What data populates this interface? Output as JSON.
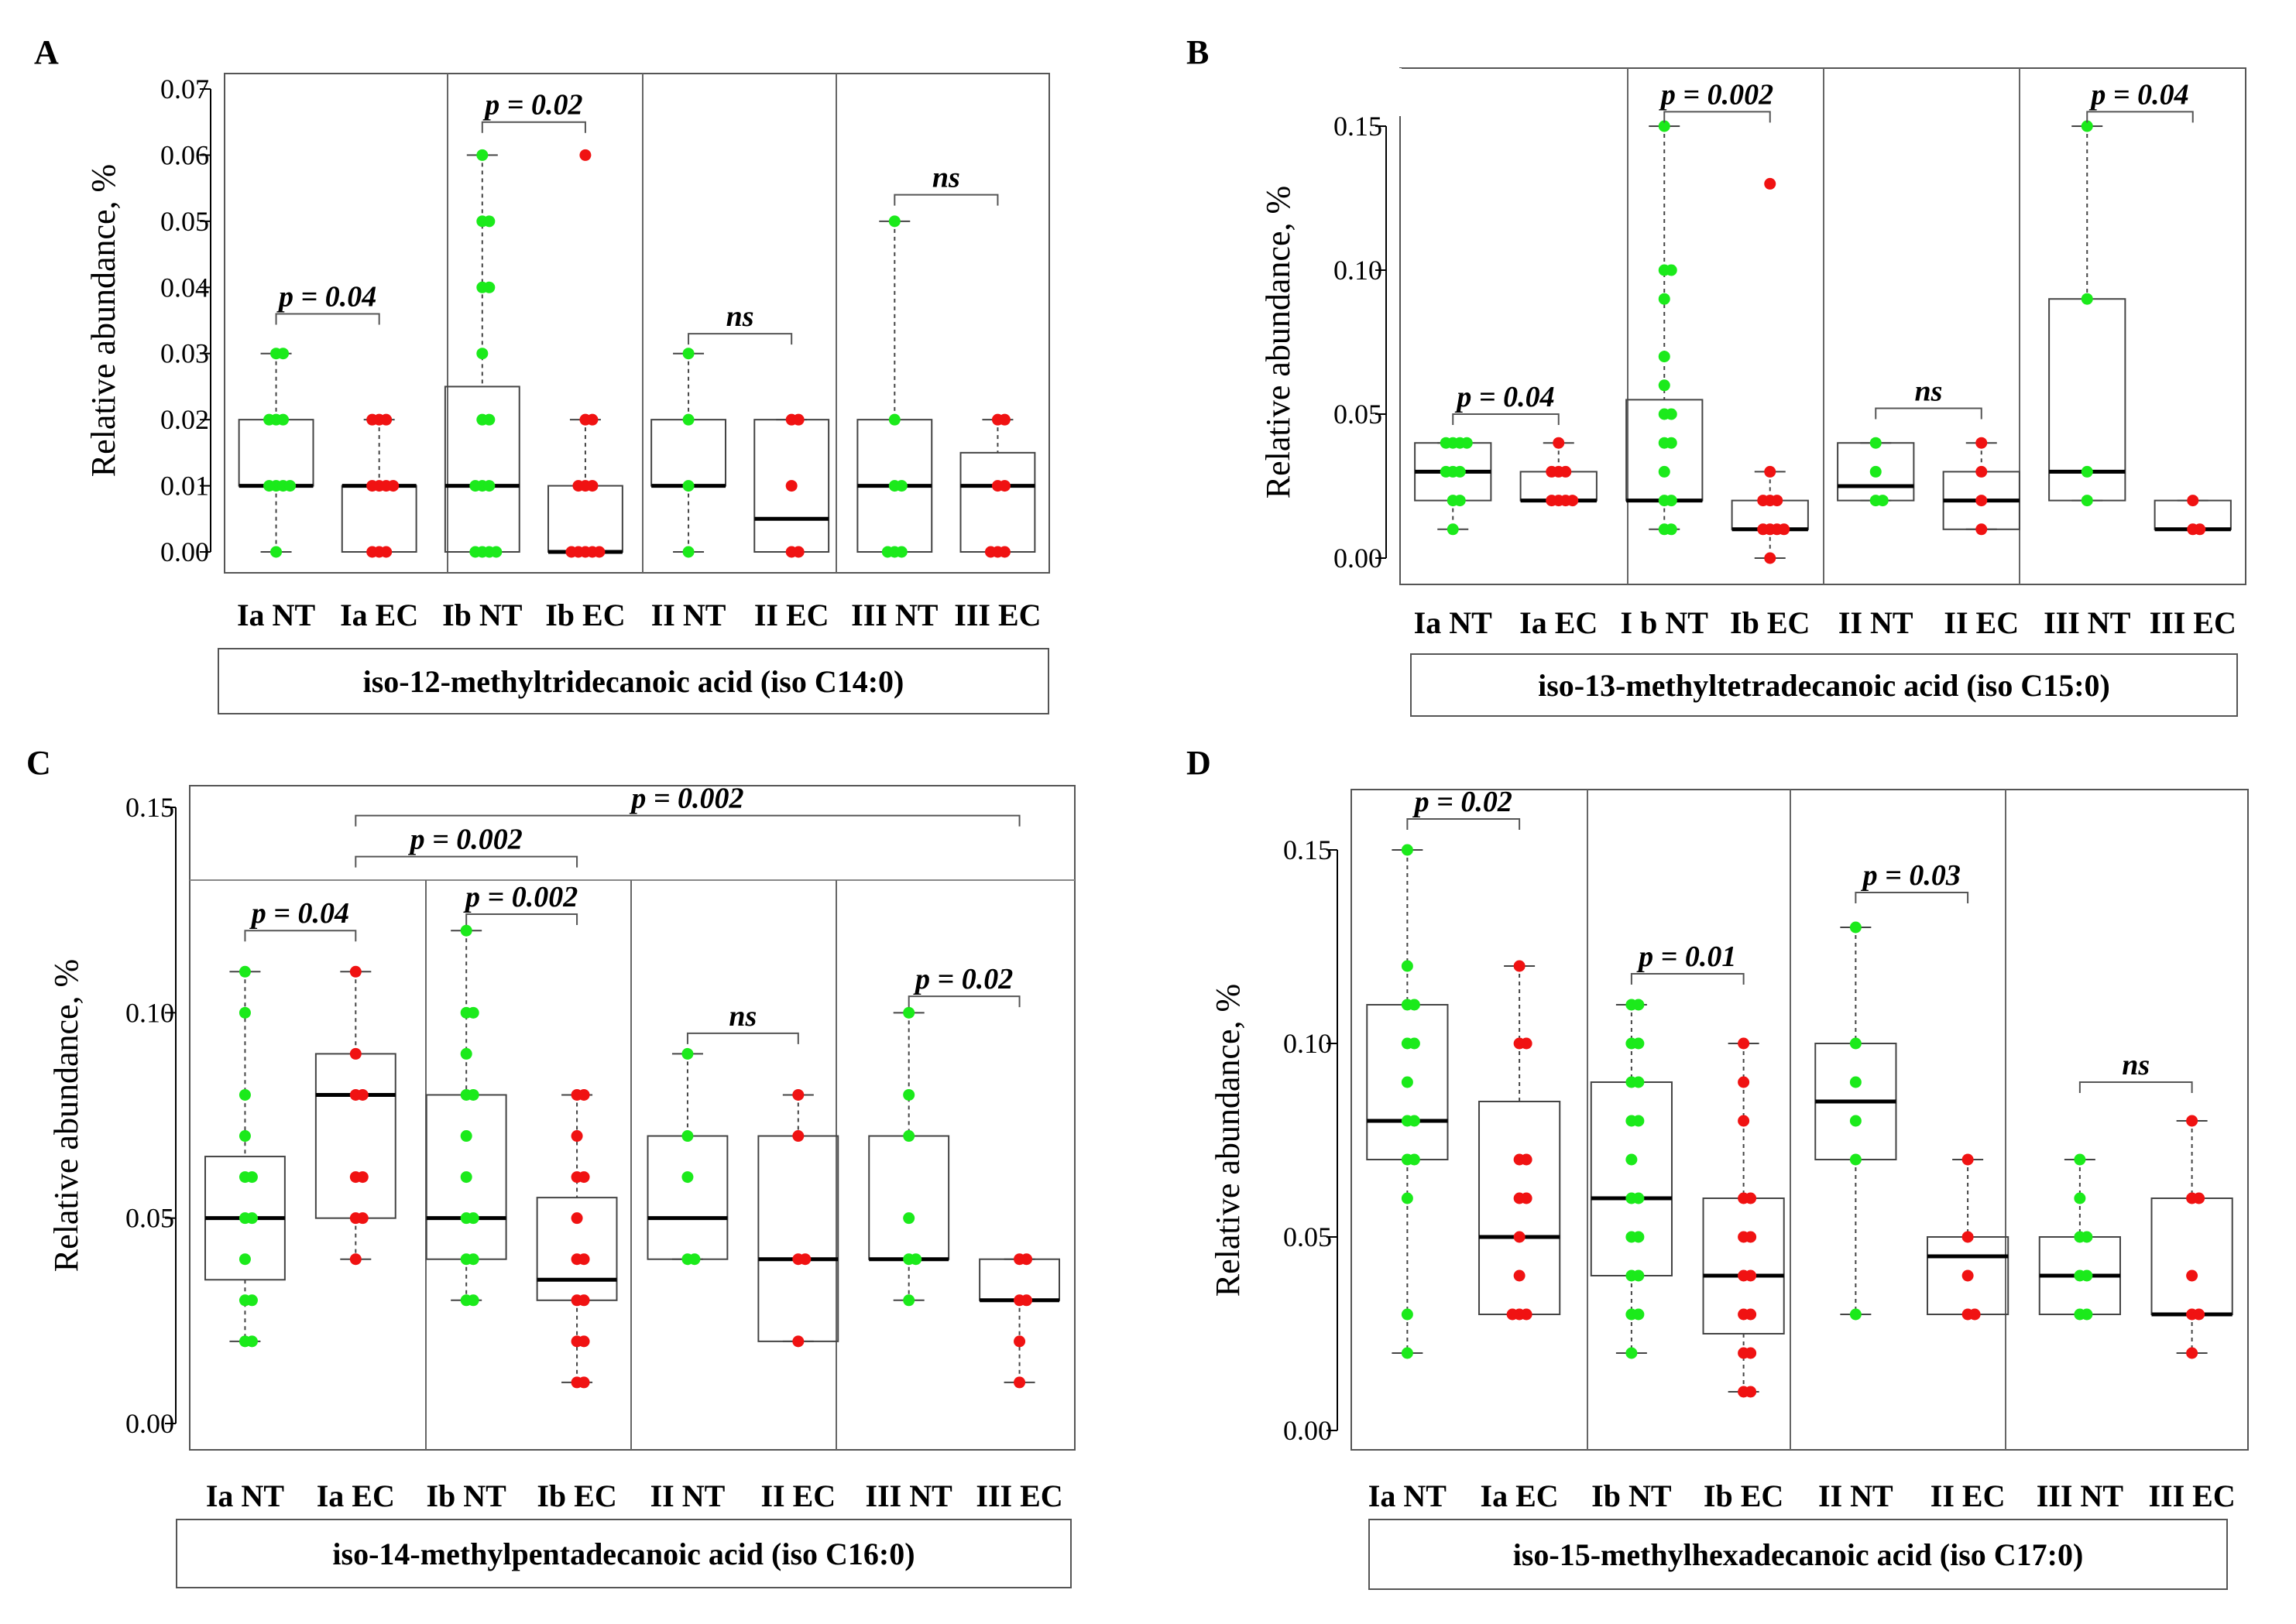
{
  "palette": {
    "nt": "#1bea1b",
    "ec": "#f01212",
    "frame": "#555555",
    "median": "#000000"
  },
  "chart_data": [
    {
      "panel": "A",
      "type": "box",
      "title": "iso-12-methyltridecanoic acid (iso C14:0)",
      "ylabel": "Relative abundance, %",
      "ylim": [
        0,
        0.07
      ],
      "yticks": [
        "0.00",
        "0.01",
        "0.02",
        "0.03",
        "0.04",
        "0.05",
        "0.06",
        "0.07"
      ],
      "categories": [
        "Ia NT",
        "Ia EC",
        "Ib NT",
        "Ib EC",
        "II NT",
        "II EC",
        "III NT",
        "III EC"
      ],
      "groups": [
        {
          "label": "Ia NT",
          "series": "NT",
          "min": 0,
          "q1": 0.01,
          "median": 0.01,
          "q3": 0.02,
          "max": 0.03,
          "points": [
            0,
            0.01,
            0.01,
            0.01,
            0.01,
            0.02,
            0.02,
            0.02,
            0.03,
            0.03
          ]
        },
        {
          "label": "Ia EC",
          "series": "EC",
          "min": 0,
          "q1": 0,
          "median": 0.01,
          "q3": 0.01,
          "max": 0.02,
          "points": [
            0,
            0,
            0,
            0.01,
            0.01,
            0.01,
            0.01,
            0.02,
            0.02,
            0.02
          ]
        },
        {
          "label": "Ib NT",
          "series": "NT",
          "min": 0,
          "q1": 0,
          "median": 0.01,
          "q3": 0.025,
          "max": 0.06,
          "points": [
            0,
            0,
            0,
            0,
            0.01,
            0.01,
            0.01,
            0.02,
            0.02,
            0.03,
            0.04,
            0.04,
            0.05,
            0.05,
            0.06
          ]
        },
        {
          "label": "Ib EC",
          "series": "EC",
          "min": 0,
          "q1": 0,
          "median": 0,
          "q3": 0.01,
          "max": 0.02,
          "points": [
            0,
            0,
            0,
            0,
            0,
            0.01,
            0.01,
            0.01,
            0.02,
            0.02,
            0.06
          ]
        },
        {
          "label": "II NT",
          "series": "NT",
          "min": 0,
          "q1": 0.01,
          "median": 0.01,
          "q3": 0.02,
          "max": 0.03,
          "points": [
            0,
            0.01,
            0.02,
            0.03
          ]
        },
        {
          "label": "II EC",
          "series": "EC",
          "min": 0,
          "q1": 0,
          "median": 0.005,
          "q3": 0.02,
          "max": 0.02,
          "points": [
            0,
            0,
            0.01,
            0.02,
            0.02
          ]
        },
        {
          "label": "III NT",
          "series": "NT",
          "min": 0,
          "q1": 0,
          "median": 0.01,
          "q3": 0.02,
          "max": 0.05,
          "points": [
            0,
            0,
            0,
            0.01,
            0.01,
            0.02,
            0.05
          ]
        },
        {
          "label": "III EC",
          "series": "EC",
          "min": 0,
          "q1": 0,
          "median": 0.01,
          "q3": 0.015,
          "max": 0.02,
          "points": [
            0,
            0,
            0,
            0.01,
            0.01,
            0.02,
            0.02
          ]
        }
      ],
      "annotations": [
        {
          "text": "p = 0.04",
          "from": 0,
          "to": 1,
          "y": 0.036
        },
        {
          "text": "p = 0.02",
          "from": 2,
          "to": 3,
          "y": 0.065
        },
        {
          "text": "ns",
          "from": 4,
          "to": 5,
          "y": 0.033
        },
        {
          "text": "ns",
          "from": 6,
          "to": 7,
          "y": 0.054
        }
      ]
    },
    {
      "panel": "B",
      "type": "box",
      "title": "iso-13-methyltetradecanoic acid (iso C15:0)",
      "ylabel": "Relative abundance, %",
      "ylim": [
        0,
        0.15
      ],
      "yticks": [
        "0.00",
        "0.05",
        "0.10",
        "0.15"
      ],
      "categories": [
        "Ia NT",
        "Ia EC",
        "I b NT",
        "Ib EC",
        "II NT",
        "II EC",
        "III NT",
        "III EC"
      ],
      "groups": [
        {
          "label": "Ia NT",
          "series": "NT",
          "min": 0.01,
          "q1": 0.02,
          "median": 0.03,
          "q3": 0.04,
          "max": 0.04,
          "points": [
            0.01,
            0.02,
            0.02,
            0.03,
            0.03,
            0.03,
            0.04,
            0.04,
            0.04,
            0.04
          ]
        },
        {
          "label": "Ia EC",
          "series": "EC",
          "min": 0.02,
          "q1": 0.02,
          "median": 0.02,
          "q3": 0.03,
          "max": 0.04,
          "points": [
            0.02,
            0.02,
            0.02,
            0.02,
            0.03,
            0.03,
            0.03,
            0.04
          ]
        },
        {
          "label": "I b NT",
          "series": "NT",
          "min": 0.01,
          "q1": 0.02,
          "median": 0.02,
          "q3": 0.055,
          "max": 0.15,
          "points": [
            0.01,
            0.01,
            0.02,
            0.02,
            0.03,
            0.04,
            0.04,
            0.05,
            0.05,
            0.06,
            0.07,
            0.09,
            0.1,
            0.1,
            0.15
          ]
        },
        {
          "label": "Ib EC",
          "series": "EC",
          "min": 0,
          "q1": 0.01,
          "median": 0.01,
          "q3": 0.02,
          "max": 0.03,
          "points": [
            0,
            0.01,
            0.01,
            0.01,
            0.01,
            0.02,
            0.02,
            0.02,
            0.03,
            0.13
          ]
        },
        {
          "label": "II NT",
          "series": "NT",
          "min": 0.02,
          "q1": 0.02,
          "median": 0.025,
          "q3": 0.04,
          "max": 0.04,
          "points": [
            0.02,
            0.02,
            0.03,
            0.04
          ]
        },
        {
          "label": "II EC",
          "series": "EC",
          "min": 0.01,
          "q1": 0.01,
          "median": 0.02,
          "q3": 0.03,
          "max": 0.04,
          "points": [
            0.01,
            0.02,
            0.03,
            0.04
          ]
        },
        {
          "label": "III NT",
          "series": "NT",
          "min": 0.02,
          "q1": 0.02,
          "median": 0.03,
          "q3": 0.09,
          "max": 0.15,
          "points": [
            0.02,
            0.03,
            0.09,
            0.15
          ]
        },
        {
          "label": "III EC",
          "series": "EC",
          "min": 0.01,
          "q1": 0.01,
          "median": 0.01,
          "q3": 0.02,
          "max": 0.02,
          "points": [
            0.01,
            0.01,
            0.02
          ]
        }
      ],
      "annotations": [
        {
          "text": "p = 0.04",
          "from": 0,
          "to": 1,
          "y": 0.05
        },
        {
          "text": "p = 0.002",
          "from": 2,
          "to": 3,
          "y": 0.155
        },
        {
          "text": "ns",
          "from": 4,
          "to": 5,
          "y": 0.052
        },
        {
          "text": "p = 0.04",
          "from": 6,
          "to": 7,
          "y": 0.155
        }
      ]
    },
    {
      "panel": "C",
      "type": "box",
      "title": "iso-14-methylpentadecanoic acid (iso C16:0)",
      "ylabel": "Relative abundance, %",
      "ylim": [
        0,
        0.15
      ],
      "yticks": [
        "0.00",
        "0.05",
        "0.10",
        "0.15"
      ],
      "categories": [
        "Ia NT",
        "Ia EC",
        "Ib NT",
        "Ib EC",
        "II NT",
        "II EC",
        "III NT",
        "III EC"
      ],
      "groups": [
        {
          "label": "Ia NT",
          "series": "NT",
          "min": 0.02,
          "q1": 0.035,
          "median": 0.05,
          "q3": 0.065,
          "max": 0.11,
          "points": [
            0.02,
            0.02,
            0.03,
            0.03,
            0.04,
            0.05,
            0.05,
            0.06,
            0.06,
            0.07,
            0.08,
            0.1,
            0.11
          ]
        },
        {
          "label": "Ia EC",
          "series": "EC",
          "min": 0.04,
          "q1": 0.05,
          "median": 0.08,
          "q3": 0.09,
          "max": 0.11,
          "points": [
            0.04,
            0.05,
            0.05,
            0.06,
            0.06,
            0.08,
            0.08,
            0.09,
            0.11
          ]
        },
        {
          "label": "Ib NT",
          "series": "NT",
          "min": 0.03,
          "q1": 0.04,
          "median": 0.05,
          "q3": 0.08,
          "max": 0.12,
          "points": [
            0.03,
            0.03,
            0.04,
            0.04,
            0.05,
            0.05,
            0.06,
            0.07,
            0.08,
            0.08,
            0.09,
            0.1,
            0.1,
            0.12
          ]
        },
        {
          "label": "Ib EC",
          "series": "EC",
          "min": 0.01,
          "q1": 0.03,
          "median": 0.035,
          "q3": 0.055,
          "max": 0.08,
          "points": [
            0.01,
            0.01,
            0.02,
            0.02,
            0.03,
            0.03,
            0.04,
            0.04,
            0.05,
            0.06,
            0.06,
            0.07,
            0.08,
            0.08
          ]
        },
        {
          "label": "II NT",
          "series": "NT",
          "min": 0.04,
          "q1": 0.04,
          "median": 0.05,
          "q3": 0.07,
          "max": 0.09,
          "points": [
            0.04,
            0.04,
            0.06,
            0.07,
            0.09
          ]
        },
        {
          "label": "II EC",
          "series": "EC",
          "min": 0.02,
          "q1": 0.02,
          "median": 0.04,
          "q3": 0.07,
          "max": 0.08,
          "points": [
            0.02,
            0.04,
            0.04,
            0.07,
            0.08
          ]
        },
        {
          "label": "III NT",
          "series": "NT",
          "min": 0.03,
          "q1": 0.04,
          "median": 0.04,
          "q3": 0.07,
          "max": 0.1,
          "points": [
            0.03,
            0.04,
            0.04,
            0.05,
            0.07,
            0.08,
            0.1
          ]
        },
        {
          "label": "III EC",
          "series": "EC",
          "min": 0.01,
          "q1": 0.03,
          "median": 0.03,
          "q3": 0.04,
          "max": 0.04,
          "points": [
            0.01,
            0.02,
            0.03,
            0.03,
            0.04,
            0.04
          ]
        }
      ],
      "annotations": [
        {
          "text": "p = 0.04",
          "from": 0,
          "to": 1,
          "y": 0.12
        },
        {
          "text": "p = 0.002",
          "from": 2,
          "to": 3,
          "y": 0.124
        },
        {
          "text": "ns",
          "from": 4,
          "to": 5,
          "y": 0.095
        },
        {
          "text": "p = 0.02",
          "from": 6,
          "to": 7,
          "y": 0.104
        },
        {
          "text": "p = 0.002",
          "from": 1,
          "to": 3,
          "y": 0.138
        },
        {
          "text": "p = 0.002",
          "from": 1,
          "to": 7,
          "y": 0.148
        }
      ]
    },
    {
      "panel": "D",
      "type": "box",
      "title": "iso-15-methylhexadecanoic acid (iso C17:0)",
      "ylabel": "Relative abundance, %",
      "ylim": [
        0,
        0.15
      ],
      "yticks": [
        "0.00",
        "0.05",
        "0.10",
        "0.15"
      ],
      "categories": [
        "Ia NT",
        "Ia EC",
        "Ib NT",
        "Ib EC",
        "II NT",
        "II EC",
        "III NT",
        "III EC"
      ],
      "groups": [
        {
          "label": "Ia NT",
          "series": "NT",
          "min": 0.02,
          "q1": 0.07,
          "median": 0.08,
          "q3": 0.11,
          "max": 0.15,
          "points": [
            0.02,
            0.03,
            0.06,
            0.07,
            0.07,
            0.08,
            0.08,
            0.09,
            0.1,
            0.1,
            0.11,
            0.11,
            0.12,
            0.15
          ]
        },
        {
          "label": "Ia EC",
          "series": "EC",
          "min": 0.03,
          "q1": 0.03,
          "median": 0.05,
          "q3": 0.085,
          "max": 0.12,
          "points": [
            0.03,
            0.03,
            0.03,
            0.04,
            0.05,
            0.06,
            0.06,
            0.07,
            0.07,
            0.1,
            0.1,
            0.12
          ]
        },
        {
          "label": "Ib NT",
          "series": "NT",
          "min": 0.02,
          "q1": 0.04,
          "median": 0.06,
          "q3": 0.09,
          "max": 0.11,
          "points": [
            0.02,
            0.03,
            0.03,
            0.04,
            0.04,
            0.05,
            0.05,
            0.06,
            0.06,
            0.07,
            0.08,
            0.08,
            0.09,
            0.09,
            0.1,
            0.1,
            0.11,
            0.11
          ]
        },
        {
          "label": "Ib EC",
          "series": "EC",
          "min": 0.01,
          "q1": 0.025,
          "median": 0.04,
          "q3": 0.06,
          "max": 0.1,
          "points": [
            0.01,
            0.01,
            0.02,
            0.02,
            0.03,
            0.03,
            0.04,
            0.04,
            0.05,
            0.05,
            0.06,
            0.06,
            0.08,
            0.09,
            0.1
          ]
        },
        {
          "label": "II NT",
          "series": "NT",
          "min": 0.03,
          "q1": 0.07,
          "median": 0.085,
          "q3": 0.1,
          "max": 0.13,
          "points": [
            0.03,
            0.07,
            0.08,
            0.09,
            0.1,
            0.13
          ]
        },
        {
          "label": "II EC",
          "series": "EC",
          "min": 0.03,
          "q1": 0.03,
          "median": 0.045,
          "q3": 0.05,
          "max": 0.07,
          "points": [
            0.03,
            0.03,
            0.04,
            0.05,
            0.07
          ]
        },
        {
          "label": "III NT",
          "series": "NT",
          "min": 0.03,
          "q1": 0.03,
          "median": 0.04,
          "q3": 0.05,
          "max": 0.07,
          "points": [
            0.03,
            0.03,
            0.04,
            0.04,
            0.05,
            0.05,
            0.06,
            0.07
          ]
        },
        {
          "label": "III EC",
          "series": "EC",
          "min": 0.02,
          "q1": 0.03,
          "median": 0.03,
          "q3": 0.06,
          "max": 0.08,
          "points": [
            0.02,
            0.03,
            0.03,
            0.04,
            0.06,
            0.06,
            0.08
          ]
        }
      ],
      "annotations": [
        {
          "text": "p = 0.02",
          "from": 0,
          "to": 1,
          "y": 0.158
        },
        {
          "text": "p = 0.01",
          "from": 2,
          "to": 3,
          "y": 0.118
        },
        {
          "text": "p = 0.03",
          "from": 4,
          "to": 5,
          "y": 0.139
        },
        {
          "text": "ns",
          "from": 6,
          "to": 7,
          "y": 0.09
        }
      ]
    }
  ]
}
